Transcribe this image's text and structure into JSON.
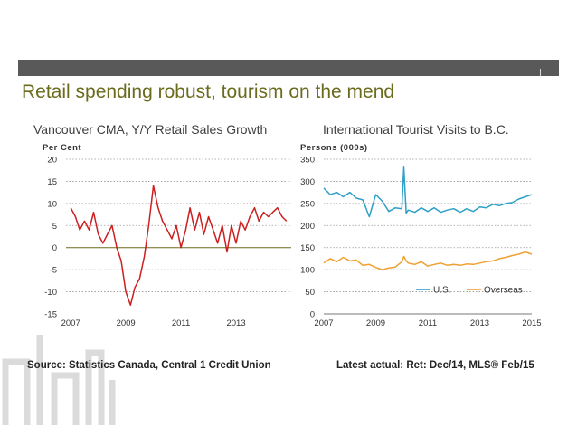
{
  "slide": {
    "title": "Retail spending robust, tourism on the mend",
    "source": "Source: Statistics Canada, Central 1 Credit Union",
    "latest": "Latest actual: Ret: Dec/14, MLS® Feb/15"
  },
  "colors": {
    "topbar": "#595959",
    "title": "#6b6b1e",
    "retail_line": "#cc1f1f",
    "zero_line": "#6b6b1e",
    "us_line": "#2e9fc7",
    "overseas_line": "#f0a030",
    "gridline": "#9a9a9a"
  },
  "chart_data": [
    {
      "type": "line",
      "title": "Vancouver CMA, Y/Y Retail Sales Growth",
      "ylabel": "Per Cent",
      "xlabel": "",
      "ylim": [
        -15,
        20
      ],
      "yticks": [
        -15,
        -10,
        -5,
        0,
        5,
        10,
        15,
        20
      ],
      "xlim": [
        2006.83,
        2015.0
      ],
      "xticks": [
        2007,
        2009,
        2011,
        2013
      ],
      "xtick_labels": [
        "2007",
        "2009",
        "2011",
        "2013"
      ],
      "grid": true,
      "reference_line": 0,
      "series": [
        {
          "x": [
            2007.0,
            2007.17,
            2007.33,
            2007.5,
            2007.67,
            2007.83,
            2008.0,
            2008.17,
            2008.33,
            2008.5,
            2008.67,
            2008.83,
            2009.0,
            2009.17,
            2009.33,
            2009.5,
            2009.67,
            2009.83,
            2010.0,
            2010.17,
            2010.33,
            2010.5,
            2010.67,
            2010.83,
            2011.0,
            2011.17,
            2011.33,
            2011.5,
            2011.67,
            2011.83,
            2012.0,
            2012.17,
            2012.33,
            2012.5,
            2012.67,
            2012.83,
            2013.0,
            2013.17,
            2013.33,
            2013.5,
            2013.67,
            2013.83,
            2014.0,
            2014.17,
            2014.33,
            2014.5,
            2014.67,
            2014.83
          ],
          "values": [
            9,
            7,
            4,
            6,
            4,
            8,
            3,
            1,
            3,
            5,
            0,
            -3,
            -10,
            -13,
            -9,
            -7,
            -2,
            5,
            14,
            9,
            6,
            4,
            2,
            5,
            0,
            4,
            9,
            4,
            8,
            3,
            7,
            4,
            1,
            5,
            -1,
            5,
            1,
            6,
            4,
            7,
            9,
            6,
            8,
            7,
            8,
            9,
            7,
            6
          ]
        }
      ]
    },
    {
      "type": "line",
      "title": "International Tourist Visits to B.C.",
      "ylabel": "Persons (000s)",
      "xlabel": "",
      "ylim": [
        0,
        350
      ],
      "yticks": [
        0,
        50,
        100,
        150,
        200,
        250,
        300,
        350
      ],
      "xlim": [
        2007,
        2015
      ],
      "xticks": [
        2007,
        2009,
        2011,
        2013,
        2015
      ],
      "xtick_labels": [
        "2007",
        "2009",
        "2011",
        "2013",
        "2015"
      ],
      "grid": true,
      "legend": "bottom-right",
      "series": [
        {
          "name": "U.S.",
          "x": [
            2007.0,
            2007.25,
            2007.5,
            2007.75,
            2008.0,
            2008.25,
            2008.5,
            2008.75,
            2009.0,
            2009.25,
            2009.5,
            2009.75,
            2010.0,
            2010.08,
            2010.17,
            2010.25,
            2010.5,
            2010.75,
            2011.0,
            2011.25,
            2011.5,
            2011.75,
            2012.0,
            2012.25,
            2012.5,
            2012.75,
            2013.0,
            2013.25,
            2013.5,
            2013.75,
            2014.0,
            2014.25,
            2014.5,
            2014.75,
            2015.0
          ],
          "values": [
            285,
            270,
            275,
            265,
            275,
            262,
            258,
            220,
            270,
            255,
            232,
            240,
            238,
            332,
            228,
            235,
            230,
            240,
            232,
            240,
            230,
            235,
            238,
            230,
            238,
            232,
            242,
            240,
            248,
            245,
            250,
            252,
            260,
            265,
            270
          ]
        },
        {
          "name": "Overseas",
          "x": [
            2007.0,
            2007.25,
            2007.5,
            2007.75,
            2008.0,
            2008.25,
            2008.5,
            2008.75,
            2009.0,
            2009.25,
            2009.5,
            2009.75,
            2010.0,
            2010.08,
            2010.17,
            2010.25,
            2010.5,
            2010.75,
            2011.0,
            2011.25,
            2011.5,
            2011.75,
            2012.0,
            2012.25,
            2012.5,
            2012.75,
            2013.0,
            2013.25,
            2013.5,
            2013.75,
            2014.0,
            2014.25,
            2014.5,
            2014.75,
            2015.0
          ],
          "values": [
            115,
            125,
            118,
            128,
            120,
            122,
            110,
            112,
            105,
            100,
            104,
            106,
            118,
            130,
            120,
            115,
            112,
            118,
            108,
            112,
            115,
            110,
            112,
            110,
            113,
            112,
            115,
            118,
            120,
            125,
            128,
            132,
            135,
            140,
            135
          ]
        }
      ]
    }
  ]
}
